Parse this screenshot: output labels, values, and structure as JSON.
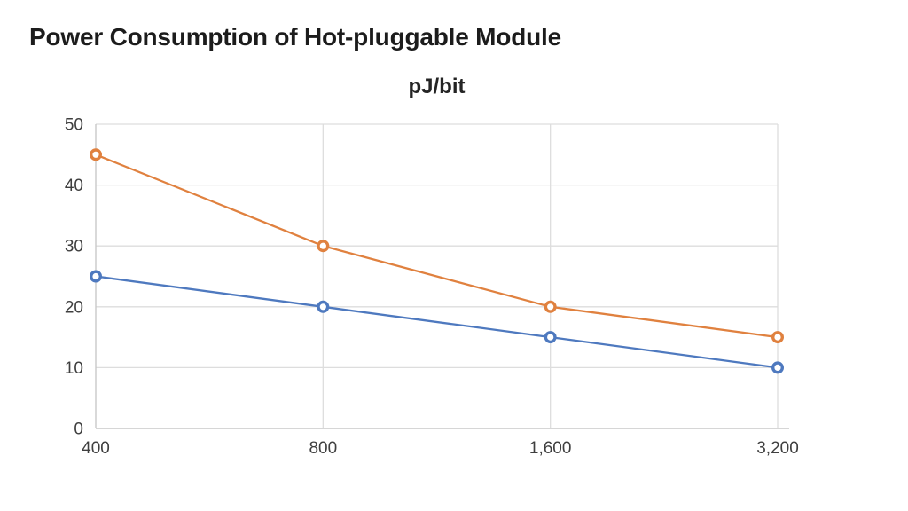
{
  "page": {
    "title": "Power Consumption of Hot-pluggable Module"
  },
  "chart_data": {
    "type": "line",
    "title": "pJ/bit",
    "categories": [
      "400",
      "800",
      "1,600",
      "3,200"
    ],
    "series": [
      {
        "name": "orange-series",
        "color": "#e0813f",
        "values": [
          45,
          30,
          20,
          15
        ]
      },
      {
        "name": "blue-series",
        "color": "#4e79bf",
        "values": [
          25,
          20,
          15,
          10
        ]
      }
    ],
    "xlabel": "",
    "ylabel": "pJ/bit",
    "ylim": [
      0,
      50
    ],
    "yticks": [
      0,
      10,
      20,
      30,
      40,
      50
    ],
    "grid": true,
    "legend": "none",
    "marker": "open-circle"
  },
  "colors": {
    "title_text": "#1c1c1c",
    "tick_text": "#3f3f3f",
    "gridline": "#dddddd",
    "axis_line": "#c9c9c9",
    "background": "#ffffff"
  }
}
